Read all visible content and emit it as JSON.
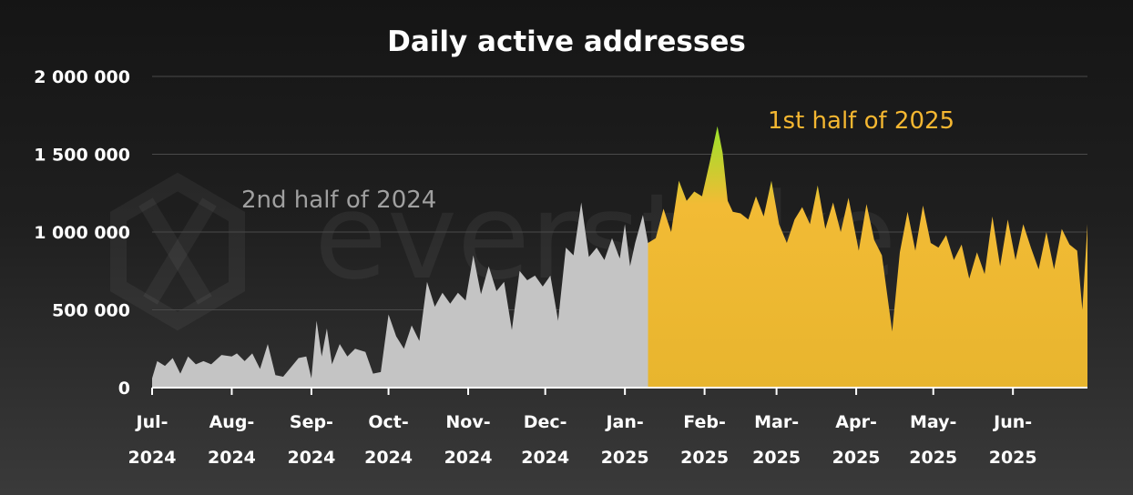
{
  "colors": {
    "h2_2024_fill": "#c4c4c4",
    "h1_2025_fill_top": "#9be22a",
    "h1_2025_fill": "#f2bb35",
    "h1_2025_fill_bottom": "#e8b52e",
    "annotation_2024": "#a0a0a0",
    "annotation_2025": "#f5b731",
    "grid": "#4a4a4a",
    "axis": "#ffffff"
  },
  "watermark": "everstake",
  "chart_data": {
    "type": "area",
    "title": "Daily active addresses",
    "xlabel": "",
    "ylabel": "",
    "ylim": [
      0,
      2000000
    ],
    "yticks": [
      0,
      500000,
      1000000,
      1500000,
      2000000
    ],
    "ytick_labels": [
      "0",
      "500 000",
      "1 000 000",
      "1 500 000",
      "2 000 000"
    ],
    "x_ticks": [
      {
        "label_month": "Jul-",
        "label_year": "2024",
        "date": "2024-07-01"
      },
      {
        "label_month": "Aug-",
        "label_year": "2024",
        "date": "2024-08-01"
      },
      {
        "label_month": "Sep-",
        "label_year": "2024",
        "date": "2024-09-01"
      },
      {
        "label_month": "Oct-",
        "label_year": "2024",
        "date": "2024-10-01"
      },
      {
        "label_month": "Nov-",
        "label_year": "2024",
        "date": "2024-11-01"
      },
      {
        "label_month": "Dec-",
        "label_year": "2024",
        "date": "2024-12-01"
      },
      {
        "label_month": "Jan-",
        "label_year": "2025",
        "date": "2025-01-01"
      },
      {
        "label_month": "Feb-",
        "label_year": "2025",
        "date": "2025-02-01"
      },
      {
        "label_month": "Mar-",
        "label_year": "2025",
        "date": "2025-03-01"
      },
      {
        "label_month": "Apr-",
        "label_year": "2025",
        "date": "2025-04-01"
      },
      {
        "label_month": "May-",
        "label_year": "2025",
        "date": "2025-05-01"
      },
      {
        "label_month": "Jun-",
        "label_year": "2025",
        "date": "2025-06-01"
      }
    ],
    "x_range": [
      "2024-07-01",
      "2025-06-30"
    ],
    "grid": true,
    "annotations": [
      {
        "text": "2nd half of 2024",
        "series": "2nd half of 2024"
      },
      {
        "text": "1st half of 2025",
        "series": "1st half of 2025"
      }
    ],
    "series": [
      {
        "name": "2nd half of 2024",
        "points": [
          [
            "2024-07-01",
            60000
          ],
          [
            "2024-07-03",
            170000
          ],
          [
            "2024-07-06",
            140000
          ],
          [
            "2024-07-09",
            190000
          ],
          [
            "2024-07-12",
            90000
          ],
          [
            "2024-07-15",
            200000
          ],
          [
            "2024-07-18",
            150000
          ],
          [
            "2024-07-21",
            170000
          ],
          [
            "2024-07-24",
            150000
          ],
          [
            "2024-07-28",
            210000
          ],
          [
            "2024-08-01",
            200000
          ],
          [
            "2024-08-03",
            220000
          ],
          [
            "2024-08-06",
            170000
          ],
          [
            "2024-08-09",
            220000
          ],
          [
            "2024-08-12",
            120000
          ],
          [
            "2024-08-15",
            280000
          ],
          [
            "2024-08-18",
            80000
          ],
          [
            "2024-08-21",
            70000
          ],
          [
            "2024-08-24",
            130000
          ],
          [
            "2024-08-27",
            190000
          ],
          [
            "2024-08-30",
            200000
          ],
          [
            "2024-09-01",
            60000
          ],
          [
            "2024-09-03",
            430000
          ],
          [
            "2024-09-05",
            200000
          ],
          [
            "2024-09-07",
            380000
          ],
          [
            "2024-09-09",
            150000
          ],
          [
            "2024-09-12",
            280000
          ],
          [
            "2024-09-15",
            200000
          ],
          [
            "2024-09-18",
            250000
          ],
          [
            "2024-09-22",
            230000
          ],
          [
            "2024-09-25",
            90000
          ],
          [
            "2024-09-28",
            100000
          ],
          [
            "2024-10-01",
            470000
          ],
          [
            "2024-10-04",
            330000
          ],
          [
            "2024-10-07",
            250000
          ],
          [
            "2024-10-10",
            400000
          ],
          [
            "2024-10-13",
            300000
          ],
          [
            "2024-10-16",
            680000
          ],
          [
            "2024-10-19",
            520000
          ],
          [
            "2024-10-22",
            610000
          ],
          [
            "2024-10-25",
            540000
          ],
          [
            "2024-10-28",
            610000
          ],
          [
            "2024-10-31",
            560000
          ],
          [
            "2024-11-03",
            850000
          ],
          [
            "2024-11-06",
            600000
          ],
          [
            "2024-11-09",
            780000
          ],
          [
            "2024-11-12",
            620000
          ],
          [
            "2024-11-15",
            680000
          ],
          [
            "2024-11-18",
            370000
          ],
          [
            "2024-11-21",
            750000
          ],
          [
            "2024-11-24",
            690000
          ],
          [
            "2024-11-27",
            720000
          ],
          [
            "2024-11-30",
            650000
          ],
          [
            "2024-12-03",
            720000
          ],
          [
            "2024-12-06",
            430000
          ],
          [
            "2024-12-09",
            900000
          ],
          [
            "2024-12-12",
            850000
          ],
          [
            "2024-12-15",
            1190000
          ],
          [
            "2024-12-18",
            840000
          ],
          [
            "2024-12-21",
            900000
          ],
          [
            "2024-12-24",
            820000
          ],
          [
            "2024-12-27",
            960000
          ],
          [
            "2024-12-30",
            830000
          ],
          [
            "2025-01-01",
            1050000
          ],
          [
            "2025-01-03",
            780000
          ],
          [
            "2025-01-05",
            930000
          ],
          [
            "2025-01-08",
            1110000
          ],
          [
            "2025-01-10",
            930000
          ]
        ]
      },
      {
        "name": "1st half of 2025",
        "points": [
          [
            "2025-01-10",
            930000
          ],
          [
            "2025-01-13",
            960000
          ],
          [
            "2025-01-16",
            1150000
          ],
          [
            "2025-01-19",
            1000000
          ],
          [
            "2025-01-22",
            1330000
          ],
          [
            "2025-01-25",
            1200000
          ],
          [
            "2025-01-28",
            1260000
          ],
          [
            "2025-01-31",
            1230000
          ],
          [
            "2025-02-03",
            1450000
          ],
          [
            "2025-02-06",
            1680000
          ],
          [
            "2025-02-08",
            1510000
          ],
          [
            "2025-02-10",
            1200000
          ],
          [
            "2025-02-12",
            1130000
          ],
          [
            "2025-02-15",
            1120000
          ],
          [
            "2025-02-18",
            1080000
          ],
          [
            "2025-02-21",
            1230000
          ],
          [
            "2025-02-24",
            1100000
          ],
          [
            "2025-02-27",
            1330000
          ],
          [
            "2025-03-02",
            1050000
          ],
          [
            "2025-03-05",
            930000
          ],
          [
            "2025-03-08",
            1080000
          ],
          [
            "2025-03-11",
            1160000
          ],
          [
            "2025-03-14",
            1050000
          ],
          [
            "2025-03-17",
            1300000
          ],
          [
            "2025-03-20",
            1020000
          ],
          [
            "2025-03-23",
            1190000
          ],
          [
            "2025-03-26",
            1000000
          ],
          [
            "2025-03-29",
            1220000
          ],
          [
            "2025-04-02",
            880000
          ],
          [
            "2025-04-05",
            1180000
          ],
          [
            "2025-04-08",
            950000
          ],
          [
            "2025-04-11",
            850000
          ],
          [
            "2025-04-15",
            360000
          ],
          [
            "2025-04-18",
            870000
          ],
          [
            "2025-04-21",
            1130000
          ],
          [
            "2025-04-24",
            880000
          ],
          [
            "2025-04-27",
            1170000
          ],
          [
            "2025-04-30",
            930000
          ],
          [
            "2025-05-03",
            900000
          ],
          [
            "2025-05-06",
            980000
          ],
          [
            "2025-05-09",
            820000
          ],
          [
            "2025-05-12",
            920000
          ],
          [
            "2025-05-15",
            700000
          ],
          [
            "2025-05-18",
            870000
          ],
          [
            "2025-05-21",
            730000
          ],
          [
            "2025-05-24",
            1100000
          ],
          [
            "2025-05-27",
            780000
          ],
          [
            "2025-05-30",
            1080000
          ],
          [
            "2025-06-02",
            820000
          ],
          [
            "2025-06-05",
            1050000
          ],
          [
            "2025-06-08",
            900000
          ],
          [
            "2025-06-11",
            760000
          ],
          [
            "2025-06-14",
            1000000
          ],
          [
            "2025-06-17",
            760000
          ],
          [
            "2025-06-20",
            1020000
          ],
          [
            "2025-06-23",
            920000
          ],
          [
            "2025-06-26",
            880000
          ],
          [
            "2025-06-28",
            500000
          ],
          [
            "2025-06-30",
            1050000
          ]
        ]
      }
    ]
  }
}
